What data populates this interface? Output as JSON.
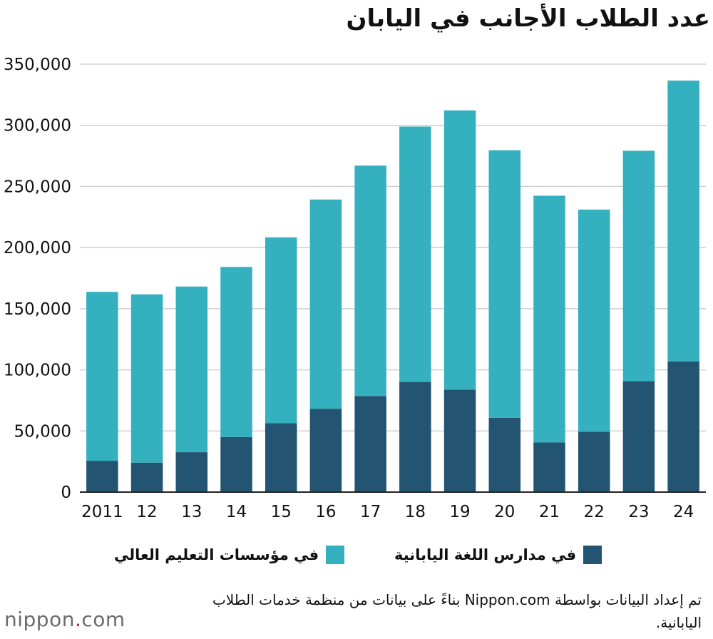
{
  "title": "عدد الطلاب الأجانب في اليابان",
  "colors": {
    "higher_education": "#35b0bf",
    "language_schools": "#235572",
    "grid": "#d0d0d0",
    "axis": "#222222"
  },
  "legend": {
    "higher_education": "في مؤسسات التعليم العالي",
    "language_schools": "في مدارس اللغة اليابانية"
  },
  "note": "تم إعداد البيانات بواسطة Nippon.com بناءً على بيانات من منظمة خدمات الطلاب اليابانية.",
  "logo": {
    "name": "nippon",
    "dot": ".",
    "tld": "com"
  },
  "chart_data": {
    "type": "bar",
    "stacked": true,
    "title": "عدد الطلاب الأجانب في اليابان",
    "categories": [
      "2011",
      "12",
      "13",
      "14",
      "15",
      "16",
      "17",
      "18",
      "19",
      "20",
      "21",
      "22",
      "23",
      "24"
    ],
    "series": [
      {
        "name": "في مدارس اللغة اليابانية",
        "color": "#235572",
        "values": [
          25622,
          24092,
          32626,
          44970,
          56317,
          68165,
          78658,
          90079,
          83811,
          60814,
          40560,
          49329,
          90832,
          106927
        ]
      },
      {
        "name": "في مؤسسات التعليم العالي",
        "color": "#35b0bf",
        "values": [
          138131,
          137664,
          135519,
          139185,
          152062,
          171122,
          188384,
          208901,
          228403,
          218783,
          201877,
          181741,
          188364,
          229700
        ]
      }
    ],
    "yticks": [
      0,
      50000,
      100000,
      150000,
      200000,
      250000,
      300000,
      350000
    ],
    "ytick_labels": [
      "0",
      "50,000",
      "100,000",
      "150,000",
      "200,000",
      "250,000",
      "300,000",
      "350,000"
    ],
    "ylim": [
      0,
      350000
    ],
    "grid": true,
    "legend_position": "bottom"
  }
}
